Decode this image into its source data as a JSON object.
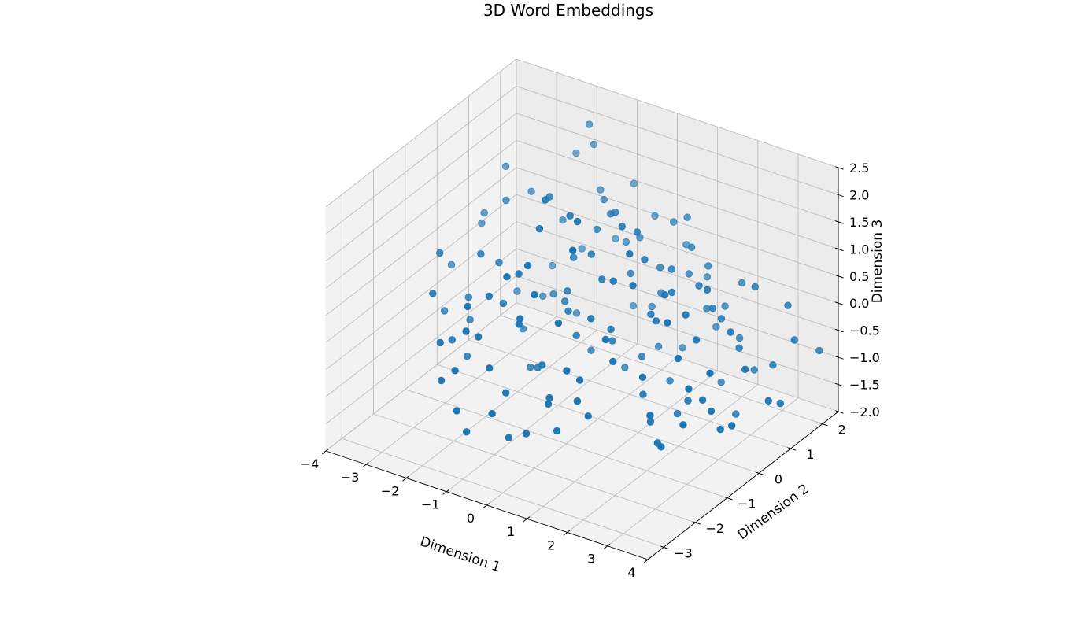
{
  "chart_data": {
    "type": "scatter",
    "projection": "3d",
    "title": "3D Word Embeddings",
    "xlabel": "Dimension 1",
    "ylabel": "Dimension 2",
    "zlabel": "Dimension 3",
    "xlim": [
      -4,
      4
    ],
    "ylim": [
      -3.5,
      2.5
    ],
    "zlim": [
      -2.0,
      2.5
    ],
    "xticks": [
      "−4",
      "−3",
      "−2",
      "−1",
      "0",
      "1",
      "2",
      "3",
      "4"
    ],
    "yticks": [
      "−3",
      "−2",
      "−1",
      "0",
      "1",
      "2"
    ],
    "zticks": [
      "−2.0",
      "−1.5",
      "−1.0",
      "−0.5",
      "0.0",
      "0.5",
      "1.0",
      "1.5",
      "2.0",
      "2.5"
    ],
    "grid": true,
    "marker_color": "#1f77b4",
    "points": [
      [
        0.9,
        -3.4,
        -0.5
      ],
      [
        1.6,
        -2.6,
        0.3
      ],
      [
        -2.9,
        -0.4,
        -0.3
      ],
      [
        -2.6,
        -1.3,
        -0.6
      ],
      [
        -3.3,
        -0.8,
        0.6
      ],
      [
        -3.0,
        -1.4,
        0.2
      ],
      [
        -2.5,
        -1.8,
        -0.4
      ],
      [
        -2.0,
        -2.4,
        -0.7
      ],
      [
        -1.5,
        -2.6,
        -0.3
      ],
      [
        -1.3,
        -2.8,
        -0.9
      ],
      [
        -0.9,
        -3.0,
        -1.1
      ],
      [
        -1.7,
        -2.0,
        0.1
      ],
      [
        -1.0,
        -2.5,
        0.4
      ],
      [
        -0.5,
        -2.7,
        -0.8
      ],
      [
        0.0,
        -2.9,
        -0.2
      ],
      [
        -0.2,
        -2.2,
        0.8
      ],
      [
        -0.7,
        -1.6,
        0.3
      ],
      [
        -2.2,
        -0.9,
        0.9
      ],
      [
        -2.6,
        0.4,
        1.2
      ],
      [
        -3.3,
        0.6,
        0.7
      ],
      [
        -3.0,
        0.9,
        1.5
      ],
      [
        -2.6,
        1.2,
        1.0
      ],
      [
        -1.6,
        -1.4,
        0.5
      ],
      [
        -1.1,
        -1.1,
        0.9
      ],
      [
        -0.4,
        -1.7,
        1.5
      ],
      [
        0.0,
        -2.0,
        1.2
      ],
      [
        -0.9,
        -0.7,
        1.6
      ],
      [
        -0.3,
        -0.5,
        1.9
      ],
      [
        0.2,
        -0.9,
        2.1
      ],
      [
        0.4,
        -1.3,
        1.8
      ],
      [
        -1.4,
        1.5,
        2.4
      ],
      [
        -1.6,
        1.9,
        1.8
      ],
      [
        -1.2,
        1.6,
        1.2
      ],
      [
        -0.8,
        1.2,
        1.3
      ],
      [
        -0.2,
        0.8,
        1.4
      ],
      [
        0.5,
        0.6,
        1.3
      ],
      [
        1.0,
        0.2,
        1.1
      ],
      [
        0.7,
        -0.4,
        0.9
      ],
      [
        0.1,
        0.0,
        0.6
      ],
      [
        -0.4,
        0.3,
        0.8
      ],
      [
        -1.0,
        0.5,
        0.5
      ],
      [
        -0.6,
        -0.2,
        0.3
      ],
      [
        0.3,
        -0.6,
        0.2
      ],
      [
        0.9,
        -0.9,
        0.1
      ],
      [
        1.4,
        -1.3,
        0.0
      ],
      [
        1.9,
        -1.0,
        -0.3
      ],
      [
        2.4,
        -1.4,
        -0.7
      ],
      [
        2.9,
        -1.8,
        -0.9
      ],
      [
        3.3,
        -1.5,
        -0.6
      ],
      [
        3.6,
        -1.0,
        -0.5
      ],
      [
        3.8,
        -0.6,
        -0.9
      ],
      [
        3.1,
        -0.4,
        -0.2
      ],
      [
        2.6,
        -0.2,
        0.2
      ],
      [
        2.1,
        0.1,
        0.4
      ],
      [
        1.6,
        0.3,
        0.6
      ],
      [
        1.2,
        0.8,
        0.7
      ],
      [
        0.6,
        1.2,
        0.4
      ],
      [
        1.0,
        1.6,
        0.2
      ],
      [
        1.6,
        1.4,
        -0.2
      ],
      [
        2.2,
        1.1,
        -0.1
      ],
      [
        2.8,
        0.9,
        -0.4
      ],
      [
        3.4,
        1.2,
        -0.7
      ],
      [
        3.9,
        0.8,
        -1.1
      ],
      [
        4.0,
        0.3,
        -0.8
      ],
      [
        3.5,
        0.2,
        -0.3
      ],
      [
        2.9,
        0.5,
        0.1
      ],
      [
        2.3,
        0.7,
        0.3
      ],
      [
        1.8,
        0.9,
        0.5
      ],
      [
        1.3,
        1.3,
        0.9
      ],
      [
        0.8,
        1.8,
        1.1
      ],
      [
        0.3,
        2.0,
        0.8
      ],
      [
        -0.3,
        1.7,
        0.5
      ],
      [
        -0.8,
        1.9,
        0.2
      ],
      [
        -1.3,
        2.2,
        0.0
      ],
      [
        -1.9,
        1.9,
        -0.2
      ],
      [
        -2.4,
        1.6,
        -0.5
      ],
      [
        -2.8,
        1.0,
        -0.8
      ],
      [
        -2.0,
        0.8,
        -0.6
      ],
      [
        -1.5,
        0.5,
        -0.3
      ],
      [
        -0.9,
        0.1,
        -0.1
      ],
      [
        -0.3,
        -0.3,
        -0.4
      ],
      [
        0.2,
        0.2,
        -0.6
      ],
      [
        0.7,
        0.5,
        -0.9
      ],
      [
        1.2,
        -0.1,
        -1.2
      ],
      [
        1.7,
        -0.5,
        -1.4
      ],
      [
        2.2,
        -0.8,
        -1.6
      ],
      [
        0.4,
        -1.8,
        -1.3
      ],
      [
        -0.1,
        -1.4,
        -1.0
      ],
      [
        -0.6,
        -1.0,
        -0.7
      ],
      [
        -1.1,
        -0.5,
        -1.1
      ],
      [
        -1.6,
        -0.1,
        -1.4
      ],
      [
        -2.1,
        0.3,
        -1.0
      ],
      [
        -1.4,
        1.1,
        -0.9
      ],
      [
        -0.8,
        0.8,
        -1.3
      ],
      [
        -0.2,
        1.1,
        -1.6
      ],
      [
        0.4,
        1.4,
        -1.2
      ],
      [
        1.0,
        1.0,
        -1.5
      ],
      [
        1.5,
        0.6,
        -1.8
      ],
      [
        2.0,
        0.3,
        -1.3
      ],
      [
        2.6,
        0.0,
        -1.0
      ],
      [
        3.2,
        -0.2,
        -1.3
      ],
      [
        2.7,
        1.5,
        -1.1
      ],
      [
        2.1,
        1.8,
        -0.8
      ],
      [
        1.5,
        2.1,
        -0.5
      ],
      [
        0.9,
        2.3,
        -0.2
      ],
      [
        0.3,
        2.4,
        0.2
      ],
      [
        -0.4,
        2.3,
        0.6
      ],
      [
        -1.0,
        2.4,
        1.0
      ],
      [
        -0.5,
        0.6,
        1.1
      ],
      [
        0.0,
        0.4,
        1.6
      ],
      [
        0.6,
        0.0,
        1.7
      ],
      [
        1.1,
        -0.4,
        1.5
      ],
      [
        1.5,
        -0.8,
        1.2
      ],
      [
        1.9,
        -0.3,
        0.9
      ],
      [
        2.4,
        0.4,
        0.8
      ],
      [
        2.8,
        1.4,
        0.5
      ],
      [
        3.3,
        1.8,
        0.1
      ],
      [
        3.7,
        1.5,
        -0.3
      ],
      [
        4.0,
        1.9,
        -0.6
      ],
      [
        -2.3,
        -0.2,
        0.4
      ],
      [
        -1.8,
        -0.7,
        0.0
      ],
      [
        -1.2,
        -1.9,
        -0.5
      ],
      [
        -0.4,
        -2.3,
        -1.4
      ],
      [
        0.5,
        -2.2,
        -0.6
      ],
      [
        1.1,
        -1.7,
        -0.9
      ],
      [
        -3.1,
        -0.1,
        -0.9
      ],
      [
        -2.7,
        -0.7,
        -1.2
      ],
      [
        -0.7,
        2.0,
        -1.0
      ],
      [
        0.0,
        1.7,
        -0.7
      ],
      [
        0.6,
        1.9,
        -1.4
      ],
      [
        1.2,
        2.2,
        -1.0
      ],
      [
        1.8,
        1.6,
        -1.6
      ],
      [
        2.4,
        1.3,
        -1.9
      ],
      [
        -1.9,
        1.3,
        0.6
      ],
      [
        -2.2,
        2.1,
        1.4
      ],
      [
        -1.2,
        0.0,
        1.8
      ],
      [
        -0.6,
        -0.9,
        2.3
      ],
      [
        0.2,
        -1.5,
        0.5
      ],
      [
        0.8,
        -2.0,
        0.0
      ],
      [
        1.3,
        -2.3,
        -0.3
      ],
      [
        -3.6,
        0.9,
        0.3
      ],
      [
        -3.8,
        0.2,
        -0.2
      ],
      [
        -3.5,
        -0.4,
        -0.7
      ],
      [
        -0.5,
        -0.3,
        0.0
      ],
      [
        0.4,
        -0.1,
        -0.2
      ],
      [
        1.0,
        0.4,
        0.0
      ],
      [
        1.6,
        -0.2,
        0.3
      ],
      [
        2.2,
        -0.6,
        0.6
      ],
      [
        2.7,
        -0.9,
        0.2
      ],
      [
        3.2,
        -1.2,
        -0.1
      ],
      [
        -1.0,
        -1.6,
        1.1
      ],
      [
        -1.5,
        -2.2,
        0.7
      ],
      [
        0.1,
        0.9,
        0.3
      ],
      [
        0.7,
        1.1,
        0.0
      ],
      [
        1.4,
        1.7,
        0.4
      ],
      [
        2.0,
        2.0,
        0.1
      ]
    ]
  }
}
